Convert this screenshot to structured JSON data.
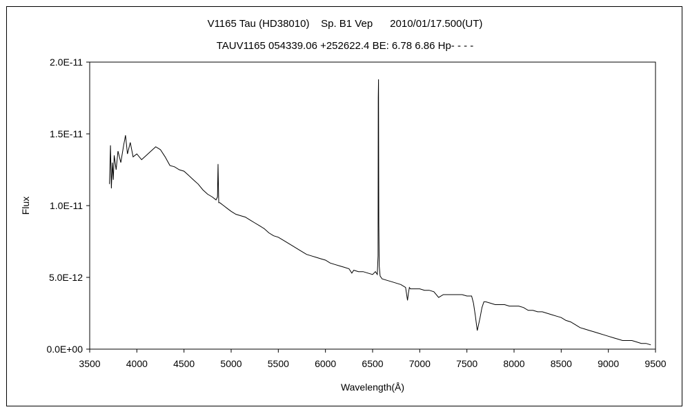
{
  "chart_data": {
    "type": "line",
    "title": "V1165 Tau (HD38010)    Sp. B1 Vep      2010/01/17.500(UT)",
    "subtitle": "TAUV1165 054339.06 +252622.4 BE: 6.78 6.86 Hp- - - -",
    "xlabel": "Wavelength(Å)",
    "ylabel": "Flux",
    "xlim": [
      3500,
      9500
    ],
    "ylim": [
      0,
      2e-11
    ],
    "x_ticks": [
      3500,
      4000,
      4500,
      5000,
      5500,
      6000,
      6500,
      7000,
      7500,
      8000,
      8500,
      9000,
      9500
    ],
    "x_tick_labels": [
      "3500",
      "4000",
      "4500",
      "5000",
      "5500",
      "6000",
      "6500",
      "7000",
      "7500",
      "8000",
      "8500",
      "9000",
      "9500"
    ],
    "y_ticks": [
      0,
      5e-12,
      1e-11,
      1.5e-11,
      2e-11
    ],
    "y_tick_labels": [
      "0.0E+00",
      "5.0E-12",
      "1.0E-11",
      "1.5E-11",
      "2.0E-11"
    ],
    "grid": false,
    "line_color": "#000000",
    "series": [
      {
        "x": [
          3710,
          3720,
          3730,
          3740,
          3750,
          3760,
          3780,
          3800,
          3830,
          3860,
          3880,
          3900,
          3930,
          3960,
          4000,
          4050,
          4100,
          4150,
          4200,
          4250,
          4300,
          4350,
          4400,
          4450,
          4500,
          4550,
          4600,
          4650,
          4700,
          4750,
          4800,
          4840,
          4855,
          4861,
          4868,
          4880,
          4920,
          4960,
          5000,
          5050,
          5100,
          5150,
          5200,
          5250,
          5300,
          5350,
          5400,
          5450,
          5500,
          5550,
          5600,
          5650,
          5700,
          5750,
          5800,
          5850,
          5900,
          5950,
          6000,
          6050,
          6100,
          6150,
          6200,
          6250,
          6280,
          6300,
          6350,
          6400,
          6450,
          6500,
          6530,
          6550,
          6558,
          6560,
          6563,
          6566,
          6570,
          6580,
          6600,
          6650,
          6700,
          6750,
          6800,
          6850,
          6870,
          6880,
          6890,
          6900,
          6950,
          7000,
          7050,
          7100,
          7150,
          7200,
          7250,
          7300,
          7350,
          7400,
          7450,
          7500,
          7550,
          7570,
          7590,
          7600,
          7610,
          7620,
          7640,
          7660,
          7680,
          7700,
          7750,
          7800,
          7850,
          7900,
          7950,
          8000,
          8050,
          8100,
          8150,
          8200,
          8250,
          8300,
          8350,
          8400,
          8450,
          8500,
          8550,
          8600,
          8650,
          8700,
          8750,
          8800,
          8850,
          8900,
          8950,
          9000,
          9050,
          9100,
          9150,
          9200,
          9250,
          9300,
          9350,
          9400,
          9450
        ],
        "y": [
          1.15e-11,
          1.42e-11,
          1.12e-11,
          1.3e-11,
          1.18e-11,
          1.35e-11,
          1.25e-11,
          1.38e-11,
          1.3e-11,
          1.42e-11,
          1.49e-11,
          1.36e-11,
          1.44e-11,
          1.34e-11,
          1.36e-11,
          1.32e-11,
          1.35e-11,
          1.38e-11,
          1.41e-11,
          1.39e-11,
          1.34e-11,
          1.28e-11,
          1.27e-11,
          1.25e-11,
          1.24e-11,
          1.21e-11,
          1.18e-11,
          1.15e-11,
          1.11e-11,
          1.08e-11,
          1.06e-11,
          1.04e-11,
          1.06e-11,
          1.29e-11,
          1.02e-11,
          1.02e-11,
          1e-11,
          9.8e-12,
          9.6e-12,
          9.4e-12,
          9.3e-12,
          9.2e-12,
          9e-12,
          8.8e-12,
          8.6e-12,
          8.4e-12,
          8.1e-12,
          7.9e-12,
          7.8e-12,
          7.6e-12,
          7.4e-12,
          7.2e-12,
          7e-12,
          6.8e-12,
          6.6e-12,
          6.5e-12,
          6.4e-12,
          6.3e-12,
          6.2e-12,
          6e-12,
          5.9e-12,
          5.8e-12,
          5.7e-12,
          5.6e-12,
          5.3e-12,
          5.5e-12,
          5.4e-12,
          5.4e-12,
          5.3e-12,
          5.2e-12,
          5.4e-12,
          5.2e-12,
          6.5e-12,
          1.75e-11,
          1.88e-11,
          8.8e-12,
          5.8e-12,
          5.1e-12,
          4.9e-12,
          4.8e-12,
          4.7e-12,
          4.6e-12,
          4.5e-12,
          4.3e-12,
          3.4e-12,
          3.9e-12,
          4.3e-12,
          4.2e-12,
          4.2e-12,
          4.2e-12,
          4.1e-12,
          4.1e-12,
          4e-12,
          3.6e-12,
          3.8e-12,
          3.8e-12,
          3.8e-12,
          3.8e-12,
          3.8e-12,
          3.7e-12,
          3.7e-12,
          3.2e-12,
          2.3e-12,
          1.8e-12,
          1.3e-12,
          1.6e-12,
          2.2e-12,
          2.9e-12,
          3.3e-12,
          3.3e-12,
          3.2e-12,
          3.1e-12,
          3.1e-12,
          3.1e-12,
          3e-12,
          3e-12,
          3e-12,
          2.9e-12,
          2.7e-12,
          2.7e-12,
          2.6e-12,
          2.6e-12,
          2.5e-12,
          2.4e-12,
          2.3e-12,
          2.2e-12,
          2e-12,
          1.9e-12,
          1.7e-12,
          1.5e-12,
          1.4e-12,
          1.3e-12,
          1.2e-12,
          1.1e-12,
          1e-12,
          9e-13,
          8e-13,
          7e-13,
          6e-13,
          6e-13,
          6e-13,
          5e-13,
          4e-13,
          4e-13,
          3e-13
        ]
      }
    ]
  }
}
